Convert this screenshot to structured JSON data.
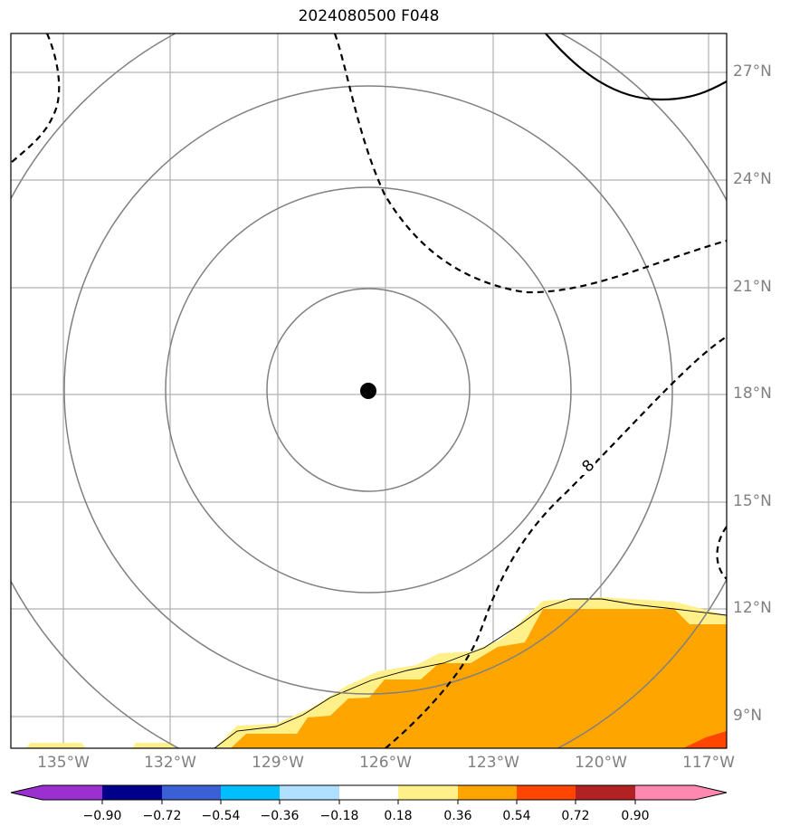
{
  "title": "2024080500 F048",
  "map": {
    "lat_labels": [
      "27°N",
      "24°N",
      "21°N",
      "18°N",
      "15°N",
      "12°N",
      "9°N"
    ],
    "lon_labels": [
      "135°W",
      "132°W",
      "129°W",
      "126°W",
      "123°W",
      "120°W",
      "117°W"
    ],
    "contour_label": "8",
    "storm_center": {
      "lat": 18.1,
      "lon": -126.5
    },
    "range_rings": 4,
    "fill_colors": {
      "pale_yellow": "#fff08a",
      "orange": "#ffa500",
      "red_orange": "#ff4500"
    }
  },
  "colorbar": {
    "ticks": [
      "−0.90",
      "−0.72",
      "−0.54",
      "−0.36",
      "−0.18",
      "0.18",
      "0.36",
      "0.54",
      "0.72",
      "0.90"
    ],
    "colors": [
      "#9b30d0",
      "#00008b",
      "#3b5fd4",
      "#00bfff",
      "#b0e0ff",
      "#ffffff",
      "#fff08a",
      "#ffa500",
      "#ff4500",
      "#b22222",
      "#ff88b0"
    ]
  }
}
